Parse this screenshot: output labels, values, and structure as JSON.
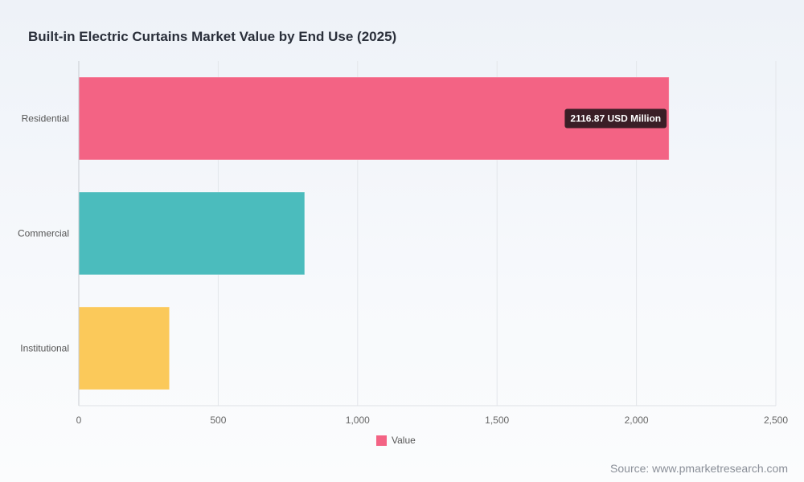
{
  "title": "Built-in Electric Curtains Market Value by End Use (2025)",
  "source": "Source: www.pmarketresearch.com",
  "legend": {
    "label": "Value",
    "color": "#f36384"
  },
  "tooltip": {
    "text": "2116.87 USD Million",
    "category": "Residential"
  },
  "chart_data": {
    "type": "bar",
    "orientation": "horizontal",
    "title": "Built-in Electric Curtains Market Value by End Use (2025)",
    "categories": [
      "Residential",
      "Commercial",
      "Institutional"
    ],
    "series": [
      {
        "name": "Value",
        "values": [
          2116.87,
          810,
          325
        ]
      }
    ],
    "colors": [
      "#f36384",
      "#4bbcbd",
      "#fbc95a"
    ],
    "xlim": [
      0,
      2500
    ],
    "xticks": [
      0,
      500,
      1000,
      1500,
      2000,
      2500
    ],
    "xtick_labels": [
      "0",
      "500",
      "1,000",
      "1,500",
      "2,000",
      "2,500"
    ],
    "grid": true,
    "legend_position": "bottom"
  }
}
